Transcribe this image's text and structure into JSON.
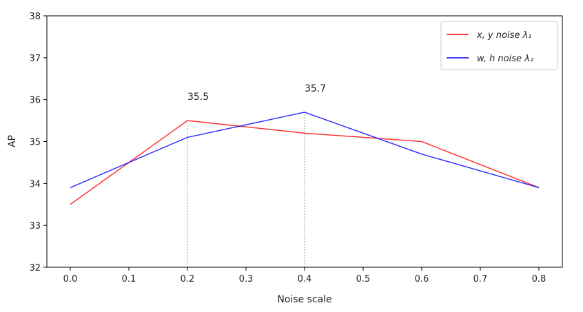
{
  "chart_data": {
    "type": "line",
    "xlabel": "Noise scale",
    "ylabel": "AP",
    "xlim": [
      -0.04,
      0.84
    ],
    "ylim": [
      32,
      38
    ],
    "x_ticks": [
      "0.0",
      "0.1",
      "0.2",
      "0.3",
      "0.4",
      "0.5",
      "0.6",
      "0.7",
      "0.8"
    ],
    "y_ticks": [
      "32",
      "33",
      "34",
      "35",
      "36",
      "37",
      "38"
    ],
    "grid": false,
    "legend_position": "top-right",
    "series": [
      {
        "name": "x, y noise λ₁",
        "color": "#ff0000",
        "x": [
          0.0,
          0.2,
          0.4,
          0.6,
          0.8
        ],
        "y": [
          33.5,
          35.5,
          35.2,
          35.0,
          33.9
        ]
      },
      {
        "name": "w, h noise λ₂",
        "color": "#0000ff",
        "x": [
          0.0,
          0.2,
          0.4,
          0.6,
          0.8
        ],
        "y": [
          33.9,
          35.1,
          35.7,
          34.7,
          33.9
        ]
      }
    ],
    "annotations": [
      {
        "text": "35.5",
        "x": 0.2,
        "y": 35.5
      },
      {
        "text": "35.7",
        "x": 0.4,
        "y": 35.7
      }
    ],
    "vlines": [
      {
        "x": 0.2,
        "y_from": 32,
        "y_to": 35.5,
        "color": "#90c090"
      },
      {
        "x": 0.4,
        "y_from": 32,
        "y_to": 35.7,
        "color": "#90c090"
      }
    ]
  }
}
